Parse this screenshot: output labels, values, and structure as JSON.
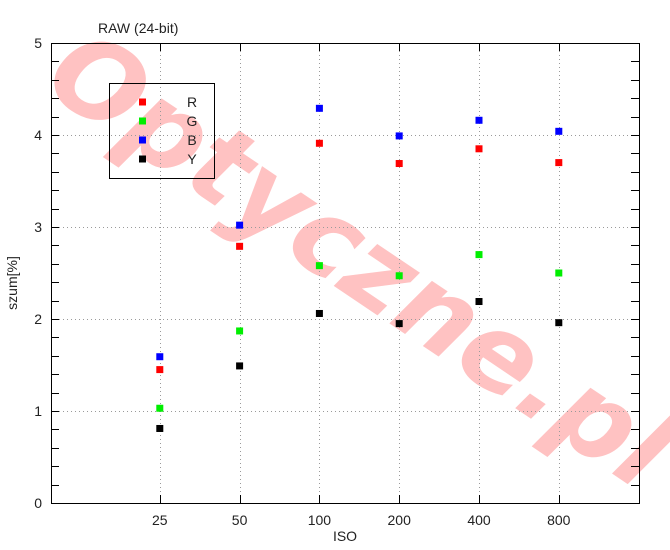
{
  "chart_data": {
    "type": "scatter",
    "title": "RAW (24-bit)",
    "xlabel": "ISO",
    "ylabel": "szum[%]",
    "categories": [
      "25",
      "50",
      "100",
      "200",
      "400",
      "800"
    ],
    "ylim": [
      0,
      5
    ],
    "yticks": [
      "0",
      "1",
      "2",
      "3",
      "4",
      "5"
    ],
    "grid": true,
    "legend_position": "top-left",
    "series": [
      {
        "name": "R",
        "color": "#ff0000",
        "values": [
          1.45,
          2.79,
          3.91,
          3.69,
          3.85,
          3.7
        ]
      },
      {
        "name": "G",
        "color": "#00ee00",
        "values": [
          1.03,
          1.87,
          2.58,
          2.47,
          2.7,
          2.5
        ]
      },
      {
        "name": "B",
        "color": "#0000ff",
        "values": [
          1.59,
          3.02,
          4.29,
          3.99,
          4.16,
          4.04
        ]
      },
      {
        "name": "Y",
        "color": "#000000",
        "values": [
          0.81,
          1.49,
          2.06,
          1.95,
          2.19,
          1.96
        ]
      }
    ]
  },
  "watermark": {
    "text": "Optyczne.pl",
    "color": "#ff9a9a"
  }
}
